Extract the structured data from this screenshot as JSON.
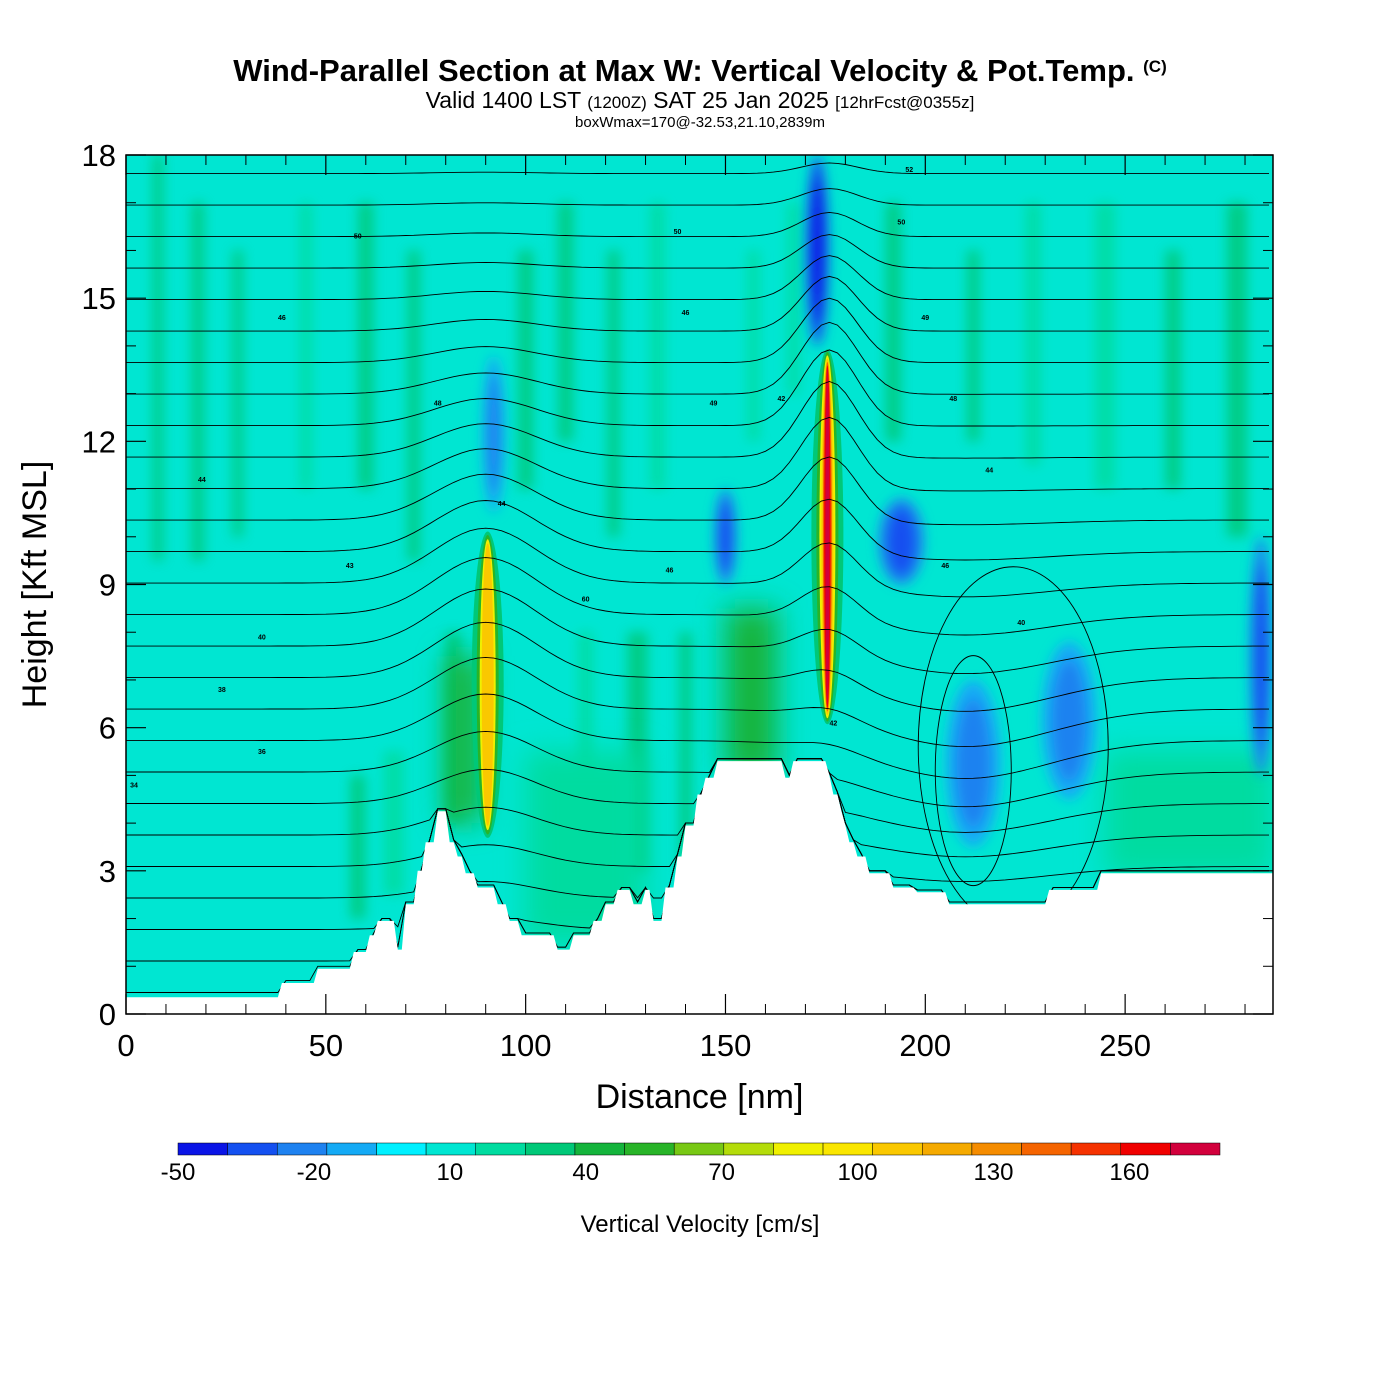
{
  "header": {
    "title": "Wind-Parallel Section at Max W: Vertical Velocity & Pot.Temp.",
    "copyright": "(C)",
    "valid_prefix": "Valid 1400 LST",
    "valid_zulu": "(1200Z)",
    "valid_date": "SAT 25 Jan 2025",
    "forecast": "[12hrFcst@0355z]",
    "box_wmax": "boxWmax=170@-32.53,21.10,2839m"
  },
  "chart_data": {
    "type": "heatmap",
    "title": "Wind-Parallel Section at Max W: Vertical Velocity & Pot.Temp.",
    "xlabel": "Distance [nm]",
    "ylabel": "Height [Kft MSL]",
    "xlim": [
      0,
      287
    ],
    "ylim": [
      0,
      18
    ],
    "x_ticks": [
      0,
      50,
      100,
      150,
      200,
      250
    ],
    "y_ticks": [
      0,
      3,
      6,
      9,
      12,
      15,
      18
    ],
    "colorbar": {
      "label": "Vertical Velocity [cm/s]",
      "tick_values": [
        -50,
        -20,
        10,
        40,
        70,
        100,
        130,
        160
      ],
      "min": -50,
      "max": 180,
      "step": 10,
      "colors": [
        "#0a14e6",
        "#1450f0",
        "#1e82f0",
        "#14aaf5",
        "#00f0ff",
        "#00e6d2",
        "#00dca0",
        "#00c878",
        "#14b43c",
        "#28b428",
        "#78c814",
        "#b4dc0a",
        "#f0f000",
        "#fae600",
        "#fac800",
        "#f5aa00",
        "#f58c00",
        "#f56400",
        "#f53200",
        "#f00000",
        "#d2003c"
      ]
    },
    "terrain_profile": [
      [
        0,
        0.35
      ],
      [
        38,
        0.35
      ],
      [
        39,
        0.65
      ],
      [
        47,
        0.65
      ],
      [
        48,
        0.95
      ],
      [
        56,
        0.95
      ],
      [
        57,
        1.3
      ],
      [
        60,
        1.3
      ],
      [
        61,
        1.65
      ],
      [
        62,
        1.65
      ],
      [
        63,
        1.95
      ],
      [
        67,
        1.95
      ],
      [
        68,
        1.35
      ],
      [
        69,
        1.35
      ],
      [
        70,
        2.3
      ],
      [
        72,
        2.3
      ],
      [
        73,
        3.0
      ],
      [
        74,
        3.0
      ],
      [
        75,
        3.6
      ],
      [
        77,
        3.6
      ],
      [
        78,
        4.25
      ],
      [
        80,
        4.25
      ],
      [
        81,
        3.6
      ],
      [
        82,
        3.6
      ],
      [
        83,
        3.3
      ],
      [
        84,
        3.3
      ],
      [
        85,
        2.95
      ],
      [
        87,
        2.95
      ],
      [
        88,
        2.65
      ],
      [
        92,
        2.65
      ],
      [
        93,
        2.3
      ],
      [
        95,
        2.3
      ],
      [
        96,
        1.95
      ],
      [
        98,
        1.95
      ],
      [
        99,
        1.65
      ],
      [
        107,
        1.65
      ],
      [
        108,
        1.35
      ],
      [
        111,
        1.35
      ],
      [
        112,
        1.65
      ],
      [
        116,
        1.65
      ],
      [
        117,
        1.95
      ],
      [
        119,
        1.95
      ],
      [
        120,
        2.3
      ],
      [
        122,
        2.3
      ],
      [
        123,
        2.6
      ],
      [
        126,
        2.6
      ],
      [
        127,
        2.3
      ],
      [
        129,
        2.3
      ],
      [
        130,
        2.6
      ],
      [
        131,
        2.6
      ],
      [
        132,
        1.95
      ],
      [
        134,
        1.95
      ],
      [
        135,
        2.65
      ],
      [
        137,
        2.65
      ],
      [
        138,
        3.3
      ],
      [
        139,
        3.3
      ],
      [
        140,
        3.95
      ],
      [
        142,
        3.95
      ],
      [
        143,
        4.6
      ],
      [
        144,
        4.6
      ],
      [
        145,
        4.95
      ],
      [
        147,
        4.95
      ],
      [
        148,
        5.3
      ],
      [
        164,
        5.3
      ],
      [
        165,
        4.95
      ],
      [
        166,
        4.95
      ],
      [
        167,
        5.3
      ],
      [
        175,
        5.3
      ],
      [
        176,
        5.0
      ],
      [
        177,
        4.6
      ],
      [
        178,
        4.6
      ],
      [
        179,
        4.25
      ],
      [
        180,
        3.95
      ],
      [
        181,
        3.6
      ],
      [
        182,
        3.6
      ],
      [
        183,
        3.3
      ],
      [
        185,
        3.3
      ],
      [
        186,
        2.95
      ],
      [
        191,
        2.95
      ],
      [
        192,
        2.65
      ],
      [
        197,
        2.65
      ],
      [
        198,
        2.55
      ],
      [
        205,
        2.55
      ],
      [
        206,
        2.3
      ],
      [
        230,
        2.3
      ],
      [
        231,
        2.6
      ],
      [
        243,
        2.6
      ],
      [
        244,
        2.95
      ],
      [
        287,
        2.95
      ]
    ],
    "updrafts": [
      {
        "x": 90.5,
        "y_bottom": 3.6,
        "y_top": 10.2,
        "peak": 110
      },
      {
        "x": 175.5,
        "y_bottom": 6.0,
        "y_top": 14.0,
        "peak": 170
      }
    ],
    "downdrafts": [
      {
        "x": 173,
        "y_bottom": 14.0,
        "y_top": 18.0,
        "value": -35
      },
      {
        "x": 212,
        "y_bottom": 3.5,
        "y_top": 7.0,
        "value": -20
      },
      {
        "x": 236,
        "y_bottom": 4.5,
        "y_top": 7.8,
        "value": -20
      },
      {
        "x": 194,
        "y_bottom": 9.0,
        "y_top": 10.8,
        "value": -25
      },
      {
        "x": 150,
        "y_bottom": 9.0,
        "y_top": 11.0,
        "value": -25
      },
      {
        "x": 92,
        "y_bottom": 10.5,
        "y_top": 13.8,
        "value": -20
      },
      {
        "x": 284,
        "y_bottom": 5.0,
        "y_top": 10.0,
        "value": -25
      }
    ],
    "theta_contours": {
      "interval": 1,
      "labels": [
        {
          "value": "34",
          "x": 2,
          "y": 4.8
        },
        {
          "value": "36",
          "x": 34,
          "y": 5.5
        },
        {
          "value": "38",
          "x": 24,
          "y": 6.8
        },
        {
          "value": "40",
          "x": 34,
          "y": 7.9
        },
        {
          "value": "43",
          "x": 56,
          "y": 9.4
        },
        {
          "value": "44",
          "x": 19,
          "y": 11.2
        },
        {
          "value": "48",
          "x": 78,
          "y": 12.8
        },
        {
          "value": "46",
          "x": 39,
          "y": 14.6
        },
        {
          "value": "50",
          "x": 58,
          "y": 16.3
        },
        {
          "value": "44",
          "x": 94,
          "y": 10.7
        },
        {
          "value": "60",
          "x": 115,
          "y": 8.7
        },
        {
          "value": "46",
          "x": 136,
          "y": 9.3
        },
        {
          "value": "49",
          "x": 147,
          "y": 12.8
        },
        {
          "value": "46",
          "x": 140,
          "y": 14.7
        },
        {
          "value": "50",
          "x": 138,
          "y": 16.4
        },
        {
          "value": "42",
          "x": 164,
          "y": 12.9
        },
        {
          "value": "42",
          "x": 177,
          "y": 6.1
        },
        {
          "value": "52",
          "x": 196,
          "y": 17.7
        },
        {
          "value": "50",
          "x": 194,
          "y": 16.6
        },
        {
          "value": "49",
          "x": 200,
          "y": 14.6
        },
        {
          "value": "48",
          "x": 207,
          "y": 12.9
        },
        {
          "value": "44",
          "x": 216,
          "y": 11.4
        },
        {
          "value": "46",
          "x": 205,
          "y": 9.4
        },
        {
          "value": "40",
          "x": 224,
          "y": 8.2
        }
      ]
    }
  }
}
